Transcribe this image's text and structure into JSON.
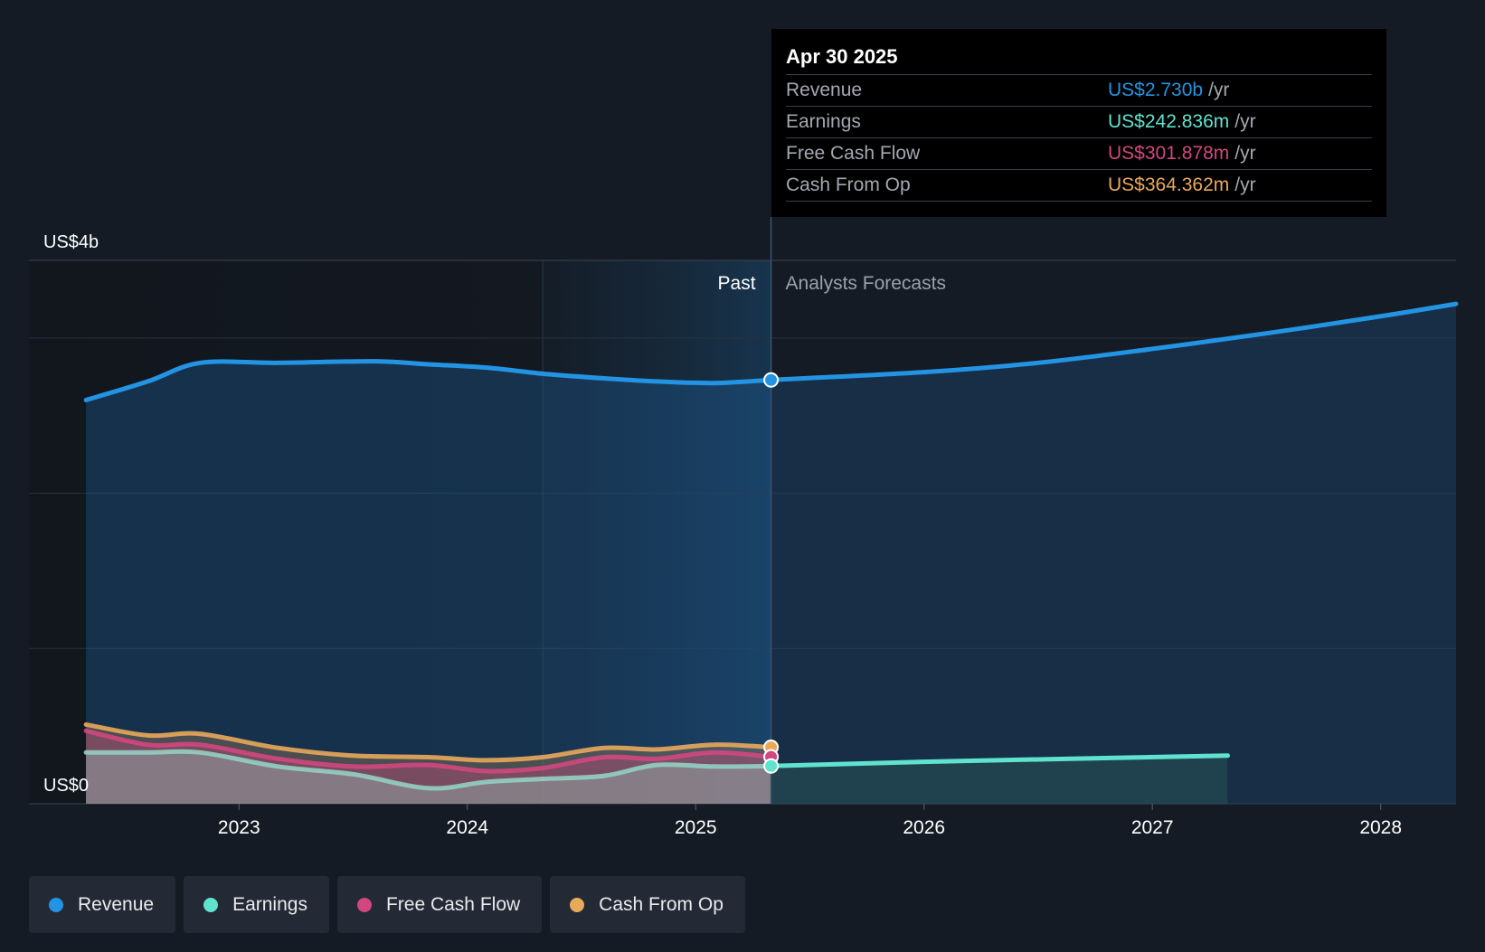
{
  "colors": {
    "revenue": "#2394e3",
    "earnings": "#5fe3cf",
    "fcf": "#d1477f",
    "cfo": "#e9a95b",
    "background": "#151b24"
  },
  "past_label": "Past",
  "forecast_label": "Analysts Forecasts",
  "tooltip": {
    "date": "Apr 30 2025",
    "rows": [
      {
        "label": "Revenue",
        "value": "US$2.730b",
        "unit": "/yr",
        "color": "#2394e3"
      },
      {
        "label": "Earnings",
        "value": "US$242.836m",
        "unit": "/yr",
        "color": "#5fe3cf"
      },
      {
        "label": "Free Cash Flow",
        "value": "US$301.878m",
        "unit": "/yr",
        "color": "#d1477f"
      },
      {
        "label": "Cash From Op",
        "value": "US$364.362m",
        "unit": "/yr",
        "color": "#e9a95b"
      }
    ]
  },
  "legend": [
    {
      "label": "Revenue",
      "color": "#2394e3"
    },
    {
      "label": "Earnings",
      "color": "#5fe3cf"
    },
    {
      "label": "Free Cash Flow",
      "color": "#d1477f"
    },
    {
      "label": "Cash From Op",
      "color": "#e9a95b"
    }
  ],
  "chart_data": {
    "type": "area",
    "y_unit": "US$ b",
    "ylim": [
      0,
      3.5
    ],
    "y_tick_labels": [
      {
        "value": 3.5,
        "label": "US$4b"
      },
      {
        "value": 0,
        "label": "US$0"
      }
    ],
    "x_tick_labels": [
      "2023",
      "2024",
      "2025",
      "2026",
      "2027",
      "2028"
    ],
    "x_tick_years": [
      2023,
      2024,
      2025,
      2026,
      2027,
      2028
    ],
    "xlim": [
      2022.08,
      2028.33
    ],
    "grid": true,
    "past_end": 2025.33,
    "highlight_start": 2024.33,
    "legend_position": "bottom-left",
    "series": [
      {
        "name": "Revenue",
        "key": "revenue",
        "x": [
          2022.33,
          2022.6,
          2022.83,
          2023.17,
          2023.6,
          2023.83,
          2024.08,
          2024.33,
          2024.6,
          2024.83,
          2025.08,
          2025.33
        ],
        "y": [
          2.6,
          2.72,
          2.84,
          2.84,
          2.85,
          2.83,
          2.81,
          2.77,
          2.74,
          2.72,
          2.71,
          2.73
        ],
        "forecast_x": [
          2025.33,
          2026.0,
          2026.5,
          2027.0,
          2027.5,
          2028.0,
          2028.33
        ],
        "forecast_y": [
          2.73,
          2.78,
          2.84,
          2.93,
          3.03,
          3.14,
          3.22
        ]
      },
      {
        "name": "Earnings",
        "key": "earnings",
        "x": [
          2022.33,
          2022.6,
          2022.83,
          2023.17,
          2023.5,
          2023.83,
          2024.08,
          2024.33,
          2024.6,
          2024.83,
          2025.08,
          2025.33
        ],
        "y": [
          0.33,
          0.33,
          0.33,
          0.24,
          0.19,
          0.1,
          0.14,
          0.16,
          0.18,
          0.25,
          0.24,
          0.243
        ],
        "forecast_x": [
          2025.33,
          2026.0,
          2027.33
        ],
        "forecast_y": [
          0.243,
          0.27,
          0.31
        ]
      },
      {
        "name": "Free Cash Flow",
        "key": "fcf",
        "x": [
          2022.33,
          2022.6,
          2022.83,
          2023.17,
          2023.5,
          2023.83,
          2024.08,
          2024.33,
          2024.6,
          2024.83,
          2025.08,
          2025.33
        ],
        "y": [
          0.47,
          0.38,
          0.38,
          0.29,
          0.24,
          0.25,
          0.21,
          0.23,
          0.3,
          0.29,
          0.33,
          0.302
        ]
      },
      {
        "name": "Cash From Op",
        "key": "cfo",
        "x": [
          2022.33,
          2022.6,
          2022.83,
          2023.17,
          2023.5,
          2023.83,
          2024.08,
          2024.33,
          2024.6,
          2024.83,
          2025.08,
          2025.33
        ],
        "y": [
          0.51,
          0.44,
          0.45,
          0.36,
          0.31,
          0.3,
          0.28,
          0.3,
          0.36,
          0.35,
          0.38,
          0.364
        ]
      }
    ]
  }
}
